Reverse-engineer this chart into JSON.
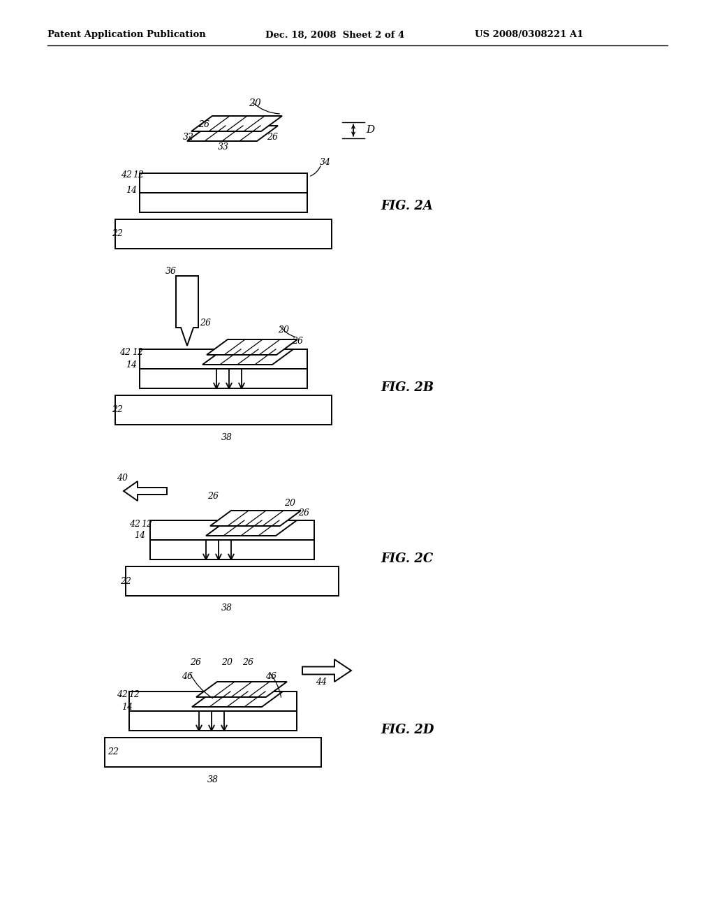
{
  "bg_color": "#ffffff",
  "header_left": "Patent Application Publication",
  "header_mid": "Dec. 18, 2008  Sheet 2 of 4",
  "header_right": "US 2008/0308221 A1",
  "fig_labels": [
    "FIG. 2A",
    "FIG. 2B",
    "FIG. 2C",
    "FIG. 2D"
  ],
  "black": "#000000",
  "white": "#ffffff"
}
